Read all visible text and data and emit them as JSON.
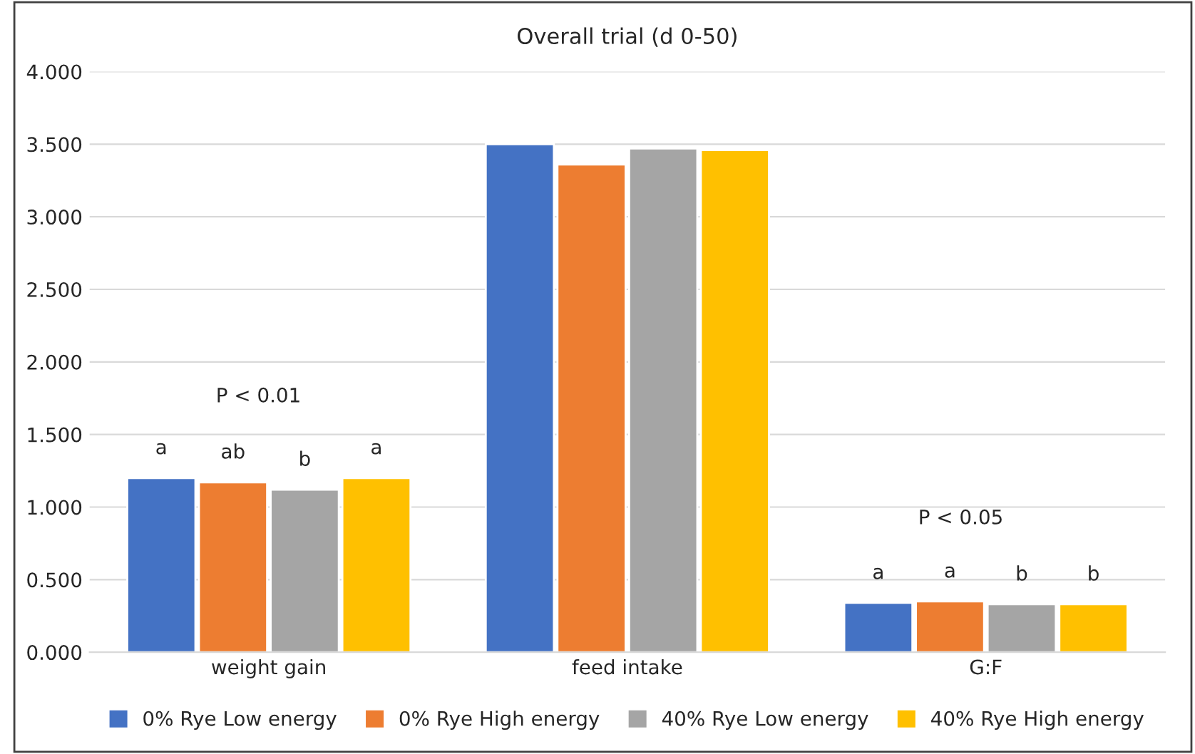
{
  "chart_data": {
    "type": "bar",
    "title": "Overall trial (d 0-50)",
    "categories": [
      "weight gain",
      "feed intake",
      "G:F"
    ],
    "series": [
      {
        "name": "0% Rye Low energy",
        "color": "#4472c4",
        "values": [
          1.2,
          3.5,
          0.34
        ],
        "value_labels": [
          "a",
          null,
          "a"
        ]
      },
      {
        "name": "0% Rye High energy",
        "color": "#ed7d31",
        "values": [
          1.17,
          3.36,
          0.35
        ],
        "value_labels": [
          "ab",
          null,
          "a"
        ]
      },
      {
        "name": "40% Rye Low energy",
        "color": "#a5a5a5",
        "values": [
          1.12,
          3.47,
          0.33
        ],
        "value_labels": [
          "b",
          null,
          "b"
        ]
      },
      {
        "name": "40% Rye High energy",
        "color": "#ffc000",
        "values": [
          1.2,
          3.46,
          0.33
        ],
        "value_labels": [
          "a",
          null,
          "b"
        ]
      }
    ],
    "ylim": [
      0,
      4
    ],
    "yticks": [
      {
        "value": 0,
        "label": "0.000"
      },
      {
        "value": 0.5,
        "label": "0.500"
      },
      {
        "value": 1,
        "label": "1.000"
      },
      {
        "value": 1.5,
        "label": "1.500"
      },
      {
        "value": 2,
        "label": "2.000"
      },
      {
        "value": 2.5,
        "label": "2.500"
      },
      {
        "value": 3,
        "label": "3.000"
      },
      {
        "value": 3.5,
        "label": "3.500"
      },
      {
        "value": 4,
        "label": "4.000"
      }
    ],
    "annotations": [
      "P < 0.01",
      "P < 0.05"
    ],
    "grid": "y",
    "legend": "bottom"
  }
}
